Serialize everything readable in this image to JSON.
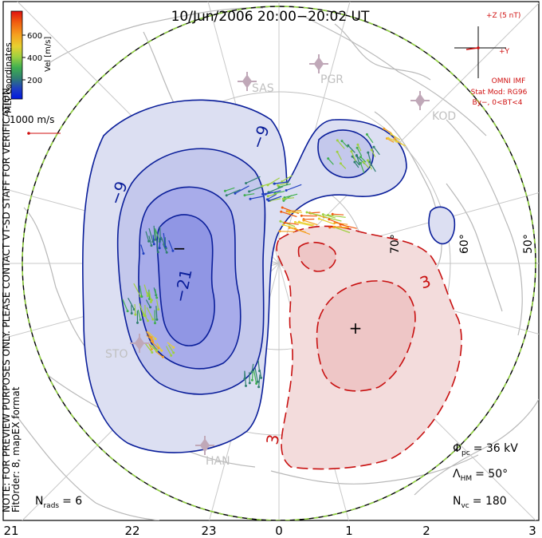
{
  "title": "10/Jun/2006 20:00−20:02 UT",
  "color_bar": {
    "label": "Vel [m/s]",
    "ticks": [
      "600",
      "400",
      "200"
    ],
    "colors": [
      "#e01010",
      "#f05a10",
      "#f5a020",
      "#e8d030",
      "#9fd040",
      "#40b050",
      "#308070",
      "#2040c0",
      "#0018e0"
    ]
  },
  "coordinate_label": "MLT coordinates",
  "vector_scale": "1000 m/s",
  "imf": {
    "z_label": "+Z (5 nT)",
    "y_label": "+Y",
    "source": "OMNI IMF",
    "model": "Stat Mod: RG96",
    "condition": "By−, 0<BT<4"
  },
  "stations": [
    "SAS",
    "PGR",
    "KOD",
    "STO",
    "HAN"
  ],
  "latitude_labels": [
    "70°",
    "60°",
    "50°"
  ],
  "mlt_labels": [
    "21",
    "22",
    "23",
    "0",
    "1",
    "2",
    "3"
  ],
  "contour_labels": [
    "−9",
    "−9",
    "−21",
    "3",
    "3"
  ],
  "center_markers": [
    "−",
    "+"
  ],
  "stats": {
    "phi_symbol": "Φ",
    "phi_sub": "pc",
    "phi_value": "= 36 kV",
    "lambda_symbol": "Λ",
    "lambda_sub": "HM",
    "lambda_value": "= 50°",
    "nvc_symbol": "N",
    "nvc_sub": "vc",
    "nvc_value": "= 180",
    "nrads_symbol": "N",
    "nrads_sub": "rads",
    "nrads_value": "= 6"
  },
  "notes": {
    "preview": "NOTE: FOR PREVIEW PURPOSES ONLY. PLEASE CONTACT VT-SD STAFF FOR VERIFICATION.",
    "fit": "FitOrder: 8, mapEX format"
  },
  "chart_data": {
    "type": "polar convection map",
    "title": "10/Jun/2006 20:00−20:02 UT",
    "coordinates": "MLT",
    "latitude_circles_deg": [
      70,
      60,
      50
    ],
    "mlt_ticks": [
      21,
      22,
      23,
      0,
      1,
      2,
      3
    ],
    "contour_levels_kV": [
      -21,
      -9,
      3
    ],
    "cross_polar_cap_potential_kV": 36,
    "heppner_maynard_boundary_deg": 50,
    "n_vectors": 180,
    "n_radars": 6,
    "velocity_scale_m_s": [
      0,
      700
    ],
    "velocity_ticks_m_s": [
      200,
      400,
      600
    ]
  }
}
